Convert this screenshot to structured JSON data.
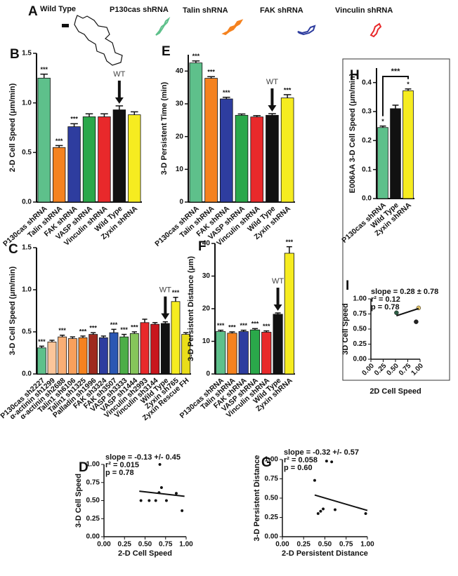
{
  "panel_a": {
    "panel": "A",
    "tracks": [
      "Wild Type",
      "P130cas shRNA",
      "Talin shRNA",
      "FAK shRNA",
      "Vinculin shRNA"
    ]
  },
  "chart_data": [
    {
      "type": "bar",
      "panel": "B",
      "y_label": "2-D Cell Speed (μm/min)",
      "categories": [
        "P130cas shRNA",
        "Talin shRNA",
        "FAK shRNA",
        "VASP shRNA",
        "Vinculin shRNA",
        "Wild Type",
        "Zyxin shRNA"
      ],
      "values": [
        1.25,
        0.55,
        0.76,
        0.86,
        0.86,
        0.93,
        0.88
      ],
      "errors": [
        0.04,
        0.02,
        0.03,
        0.03,
        0.03,
        0.04,
        0.03
      ],
      "colors": [
        "#5ec08b",
        "#f5821f",
        "#2e3d9f",
        "#2aa84a",
        "#e8292b",
        "#111111",
        "#f6ec20"
      ],
      "significance": [
        "***",
        "***",
        "***",
        null,
        null,
        null,
        null
      ],
      "markers": [
        null,
        null,
        null,
        null,
        null,
        "WT",
        null
      ],
      "ylim": [
        0,
        1.5
      ],
      "yticks": [
        {
          "value": 0,
          "label": "0.0"
        },
        0.5,
        {
          "value": 1,
          "label": "1.0"
        },
        1.5
      ]
    },
    {
      "type": "bar",
      "panel": "E",
      "y_label": "3-D Persistent Time (min)",
      "categories": [
        "P130cas shRNA",
        "Talin shRNA",
        "FAK shRNA",
        "VASP shRNA",
        "Vinculin shRNA",
        "Wild Type",
        "Zyxin shRNA"
      ],
      "values": [
        42.5,
        37.8,
        31.5,
        26.5,
        26,
        26.5,
        31.8
      ],
      "errors": [
        0.6,
        0.5,
        0.5,
        0.4,
        0.4,
        0.5,
        1.0
      ],
      "colors": [
        "#5ec08b",
        "#f5821f",
        "#2e3d9f",
        "#2aa84a",
        "#e8292b",
        "#111111",
        "#f6ec20"
      ],
      "significance": [
        "***",
        "***",
        "***",
        null,
        null,
        null,
        "***"
      ],
      "markers": [
        null,
        null,
        null,
        null,
        null,
        "WT",
        null
      ],
      "ylim": [
        0,
        45
      ],
      "yticks": [
        0,
        10,
        20,
        30,
        40
      ]
    },
    {
      "type": "bar",
      "panel": "H",
      "y_label": "E006AA 3-D Cell Speed (μm/min)",
      "categories": [
        "P130cas shRNA",
        "Wild Type",
        "Zyxin shRNA"
      ],
      "values": [
        0.245,
        0.31,
        0.372
      ],
      "errors": [
        0.005,
        0.012,
        0.006
      ],
      "colors": [
        "#5ec08b",
        "#111111",
        "#f6ec20"
      ],
      "significance": [
        "*",
        null,
        "*"
      ],
      "bracket_label": "***",
      "ylim": [
        0,
        0.45
      ],
      "yticks": [
        {
          "value": 0,
          "label": "0.0"
        },
        0.1,
        0.2,
        0.3,
        0.4
      ]
    },
    {
      "type": "bar",
      "panel": "C",
      "y_label": "3-D Cell Speed (μm/min)",
      "categories": [
        "P130cas sh2227",
        "α-actinin sh1299",
        "α-actinin sh2688",
        "Talin1 sh6106",
        "Talin1 sh1325",
        "Palladin sh1996",
        "FAK sh3324",
        "FAK sh3507",
        "VASP sh3333",
        "VASP sh1444",
        "Vinculin sh2993",
        "Vinculin sh3144",
        "Wild Type",
        "Zyxin sh765",
        "Zyxin Rescue FH"
      ],
      "values": [
        0.31,
        0.38,
        0.44,
        0.42,
        0.43,
        0.47,
        0.43,
        0.49,
        0.44,
        0.48,
        0.61,
        0.59,
        0.6,
        0.86,
        0.47
      ],
      "errors": [
        0.02,
        0.02,
        0.02,
        0.02,
        0.02,
        0.02,
        0.02,
        0.04,
        0.03,
        0.02,
        0.04,
        0.02,
        0.02,
        0.05,
        0.02
      ],
      "colors": [
        "#5ec08b",
        "#fbc59a",
        "#f9ae74",
        "#f8a05c",
        "#f5821f",
        "#9e2a1f",
        "#2e3d9f",
        "#2b57b3",
        "#4cae48",
        "#86c55b",
        "#e8292b",
        "#c8161d",
        "#111111",
        "#f6ec20",
        "#e9dd1a"
      ],
      "significance": [
        "***",
        null,
        "***",
        null,
        "***",
        "***",
        null,
        "***",
        "***",
        "***",
        null,
        null,
        null,
        "***",
        null
      ],
      "markers": [
        null,
        null,
        null,
        null,
        null,
        null,
        null,
        null,
        null,
        null,
        null,
        null,
        "WT",
        null,
        null
      ],
      "ylim": [
        0,
        1.5
      ],
      "yticks": [
        {
          "value": 0,
          "label": "0.0"
        },
        0.5,
        {
          "value": 1,
          "label": "1.0"
        },
        1.5
      ]
    },
    {
      "type": "bar",
      "panel": "F",
      "y_label": "3-D Persistent Distance (μm)",
      "categories": [
        "P130cas shRNA",
        "Talin shRNA",
        "FAK shRNA",
        "VASP shRNA",
        "Vinculin shRNA",
        "Wild Type",
        "Zyxin shRNA"
      ],
      "values": [
        13,
        12.5,
        13,
        13.5,
        12.8,
        18.3,
        37
      ],
      "errors": [
        0.4,
        0.4,
        0.4,
        0.4,
        0.4,
        0.4,
        2.0
      ],
      "colors": [
        "#5ec08b",
        "#f5821f",
        "#2e3d9f",
        "#2aa84a",
        "#e8292b",
        "#111111",
        "#f6ec20"
      ],
      "significance": [
        "***",
        "***",
        "***",
        "***",
        "***",
        null,
        "***"
      ],
      "markers": [
        null,
        null,
        null,
        null,
        null,
        "WT",
        null
      ],
      "ylim": [
        0,
        40
      ],
      "yticks": [
        0,
        10,
        20,
        30,
        40
      ]
    },
    {
      "type": "scatter",
      "panel": "D",
      "x_label": "2-D Cell  Speed",
      "y_label": "3-D Cell Speed",
      "stats": [
        "slope = -0.13 +/- 0.45",
        "r² = 0.015",
        "p = 0.78"
      ],
      "x": [
        0.45,
        0.55,
        0.63,
        0.67,
        0.7,
        0.76,
        0.88,
        0.95,
        0.68
      ],
      "y": [
        0.5,
        0.5,
        0.5,
        0.61,
        0.68,
        0.5,
        0.6,
        0.36,
        1.0
      ],
      "color": "#111111",
      "fit": {
        "x": [
          0.43,
          0.98
        ],
        "y": [
          0.63,
          0.56
        ]
      },
      "xlim": [
        0,
        1
      ],
      "ylim": [
        0,
        1
      ],
      "xticks": [
        {
          "value": 0,
          "label": "0.00"
        },
        0.25,
        {
          "value": 0.5,
          "label": "0.50"
        },
        0.75,
        {
          "value": 1,
          "label": "1.00"
        }
      ],
      "yticks": [
        {
          "value": 0,
          "label": "0.00"
        },
        0.25,
        {
          "value": 0.5,
          "label": "0.50"
        },
        0.75,
        {
          "value": 1,
          "label": "1.00"
        }
      ]
    },
    {
      "type": "scatter",
      "panel": "G",
      "x_label": "2-D Persistent Distance",
      "y_label": "3-D Persistent Distance",
      "stats": [
        "slope = -0.32 +/- 0.57",
        "r² = 0.058",
        "p = 0.60"
      ],
      "x": [
        0.38,
        0.42,
        0.45,
        0.48,
        0.58,
        0.62,
        0.98,
        0.52
      ],
      "y": [
        0.73,
        0.3,
        0.33,
        0.36,
        0.97,
        0.35,
        0.3,
        0.98
      ],
      "color": "#111111",
      "fit": {
        "x": [
          0.38,
          1.0
        ],
        "y": [
          0.54,
          0.34
        ]
      },
      "xlim": [
        0,
        1
      ],
      "ylim": [
        0,
        1
      ],
      "xticks": [
        {
          "value": 0,
          "label": "0.00"
        },
        0.25,
        {
          "value": 0.5,
          "label": "0.50"
        },
        0.75,
        {
          "value": 1,
          "label": "1.00"
        }
      ],
      "yticks": [
        {
          "value": 0,
          "label": "0.00"
        },
        0.25,
        {
          "value": 0.5,
          "label": "0.50"
        },
        0.75,
        {
          "value": 1,
          "label": "1.00"
        }
      ]
    },
    {
      "type": "scatter",
      "panel": "I",
      "x_label": "2D Cell Speed",
      "y_label": "3D Cell  Speed",
      "stats": [
        "slope = 0.28 ± 0.78",
        "r² = 0.12",
        "p = 0.78"
      ],
      "x": [
        0.52,
        0.92,
        0.97
      ],
      "y": [
        0.77,
        0.62,
        0.85
      ],
      "colors": [
        "#2d5e45",
        "#222222",
        "#e6c76a"
      ],
      "fit": {
        "x": [
          0.52,
          0.97
        ],
        "y": [
          0.72,
          0.84
        ]
      },
      "xlim": [
        0,
        1
      ],
      "ylim": [
        0,
        1
      ],
      "xticks": [
        {
          "value": 0,
          "label": "0.00"
        },
        0.25,
        {
          "value": 0.5,
          "label": "0.50"
        },
        0.75,
        {
          "value": 1,
          "label": "1.00"
        }
      ],
      "yticks": [
        {
          "value": 0,
          "label": "0.00"
        },
        0.25,
        {
          "value": 0.5,
          "label": "0.50"
        },
        0.75,
        {
          "value": 1,
          "label": "1.00"
        }
      ]
    }
  ]
}
